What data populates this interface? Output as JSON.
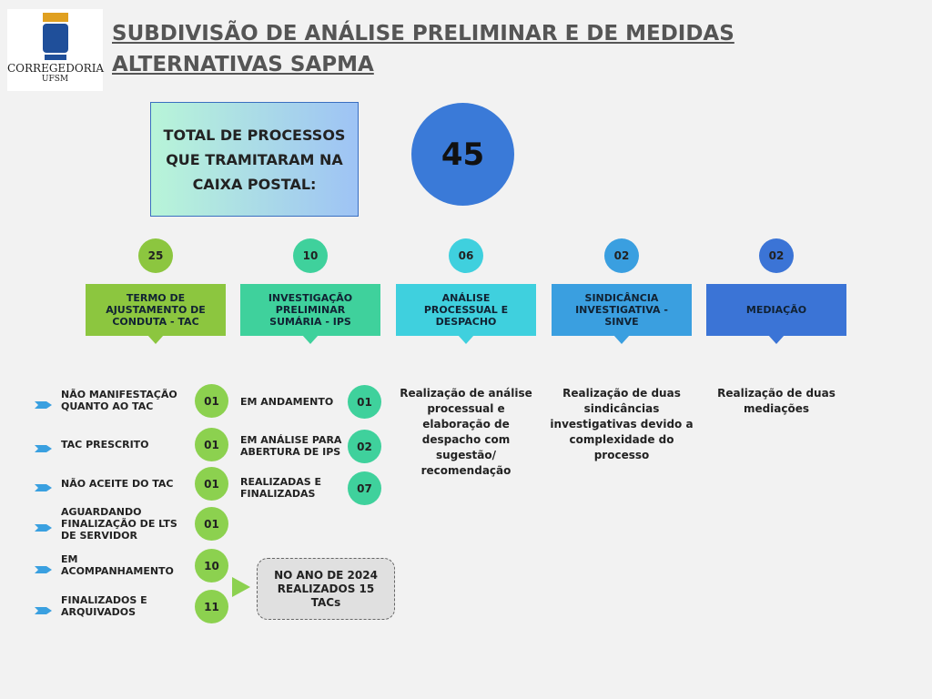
{
  "logo": {
    "name": "CORREGEDORIA",
    "sub": "UFSM"
  },
  "header": {
    "title": "SUBDIVISÃO DE ANÁLISE PRELIMINAR E DE MEDIDAS ALTERNATIVAS SAPMA"
  },
  "total": {
    "label": "TOTAL DE PROCESSOS QUE TRAMITARAM NA CAIXA POSTAL:",
    "value": "45"
  },
  "categories": [
    {
      "count": "25",
      "label": "TERMO DE AJUSTAMENTO DE CONDUTA - TAC",
      "color": "#8cc63f"
    },
    {
      "count": "10",
      "label": "INVESTIGAÇÃO PRELIMINAR SUMÁRIA - IPS",
      "color": "#3fd19c"
    },
    {
      "count": "06",
      "label": "ANÁLISE PROCESSUAL E DESPACHO",
      "color": "#3fd0de",
      "description": "Realização de análise processual e elaboração de despacho com sugestão/ recomendação"
    },
    {
      "count": "02",
      "label": "SINDICÂNCIA INVESTIGATIVA - SINVE",
      "color": "#3a9fe0",
      "description": "Realização de duas sindicâncias investigativas devido a complexidade do processo"
    },
    {
      "count": "02",
      "label": "MEDIAÇÃO",
      "color": "#3b74d6",
      "description": "Realização de duas mediações"
    }
  ],
  "tac_items": [
    {
      "label": "NÃO MANIFESTAÇÃO QUANTO AO TAC",
      "count": "01"
    },
    {
      "label": "TAC PRESCRITO",
      "count": "01"
    },
    {
      "label": "NÃO ACEITE DO TAC",
      "count": "01"
    },
    {
      "label": "AGUARDANDO FINALIZAÇÃO DE LTS DE SERVIDOR",
      "count": "01"
    },
    {
      "label": "EM ACOMPANHAMENTO",
      "count": "10"
    },
    {
      "label": "FINALIZADOS E ARQUIVADOS",
      "count": "11"
    }
  ],
  "ips_items": [
    {
      "label": "EM ANDAMENTO",
      "count": "01"
    },
    {
      "label": "EM ANÁLISE PARA ABERTURA DE IPS",
      "count": "02"
    },
    {
      "label": "REALIZADAS E FINALIZADAS",
      "count": "07"
    }
  ],
  "note": "NO ANO DE 2024 REALIZADOS 15 TACs"
}
